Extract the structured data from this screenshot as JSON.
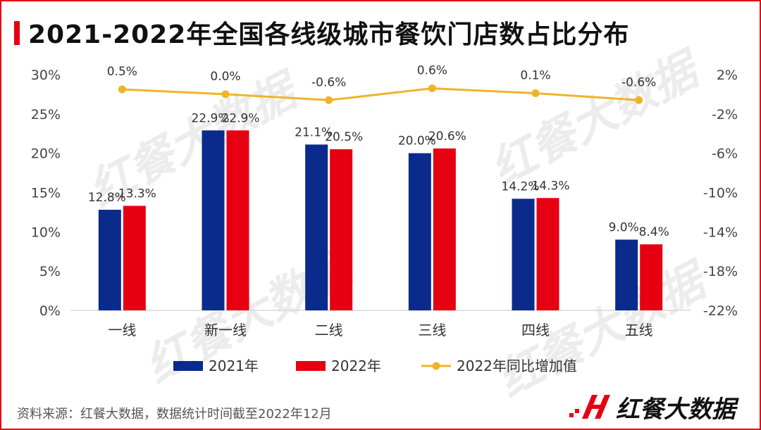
{
  "title": "2021-2022年全国各线级城市餐饮门店数占比分布",
  "source": "资料来源：红餐大数据，数据统计时间截至2022年12月",
  "brand": {
    "name": "红餐大数据",
    "watermark": "红餐大数据"
  },
  "colors": {
    "series2021": "#0a2a8c",
    "series2022": "#e60012",
    "line": "#f0b429",
    "accent": "#e60012"
  },
  "chart_data": {
    "type": "bar",
    "title": "2021-2022年全国各线级城市餐饮门店数占比分布",
    "categories": [
      "一线",
      "新一线",
      "二线",
      "三线",
      "四线",
      "五线"
    ],
    "series": [
      {
        "name": "2021年",
        "type": "bar",
        "axis": "left",
        "values": [
          12.8,
          22.9,
          21.1,
          20.0,
          14.2,
          9.0
        ],
        "labels": [
          "12.8%",
          "22.9%",
          "21.1%",
          "20.0%",
          "14.2%",
          "9.0%"
        ]
      },
      {
        "name": "2022年",
        "type": "bar",
        "axis": "left",
        "values": [
          13.3,
          22.9,
          20.5,
          20.6,
          14.3,
          8.4
        ],
        "labels": [
          "13.3%",
          "22.9%",
          "20.5%",
          "20.6%",
          "14.3%",
          "8.4%"
        ]
      },
      {
        "name": "2022年同比增加值",
        "type": "line",
        "axis": "right",
        "values": [
          0.5,
          0.0,
          -0.6,
          0.6,
          0.1,
          -0.6
        ],
        "labels": [
          "0.5%",
          "0.0%",
          "-0.6%",
          "0.6%",
          "0.1%",
          "-0.6%"
        ]
      }
    ],
    "yleft": {
      "range": [
        0,
        30
      ],
      "ticks": [
        0,
        5,
        10,
        15,
        20,
        25,
        30
      ],
      "tick_labels": [
        "0%",
        "5%",
        "10%",
        "15%",
        "20%",
        "25%",
        "30%"
      ]
    },
    "yright": {
      "range": [
        -22,
        2
      ],
      "ticks": [
        -22,
        -18,
        -14,
        -10,
        -6,
        -2,
        2
      ],
      "tick_labels": [
        "-22%",
        "-18%",
        "-14%",
        "-10%",
        "-6%",
        "-2%",
        "2%"
      ]
    },
    "legend": {
      "position": "bottom",
      "entries": [
        "2021年",
        "2022年",
        "2022年同比增加值"
      ]
    },
    "grid": false
  }
}
